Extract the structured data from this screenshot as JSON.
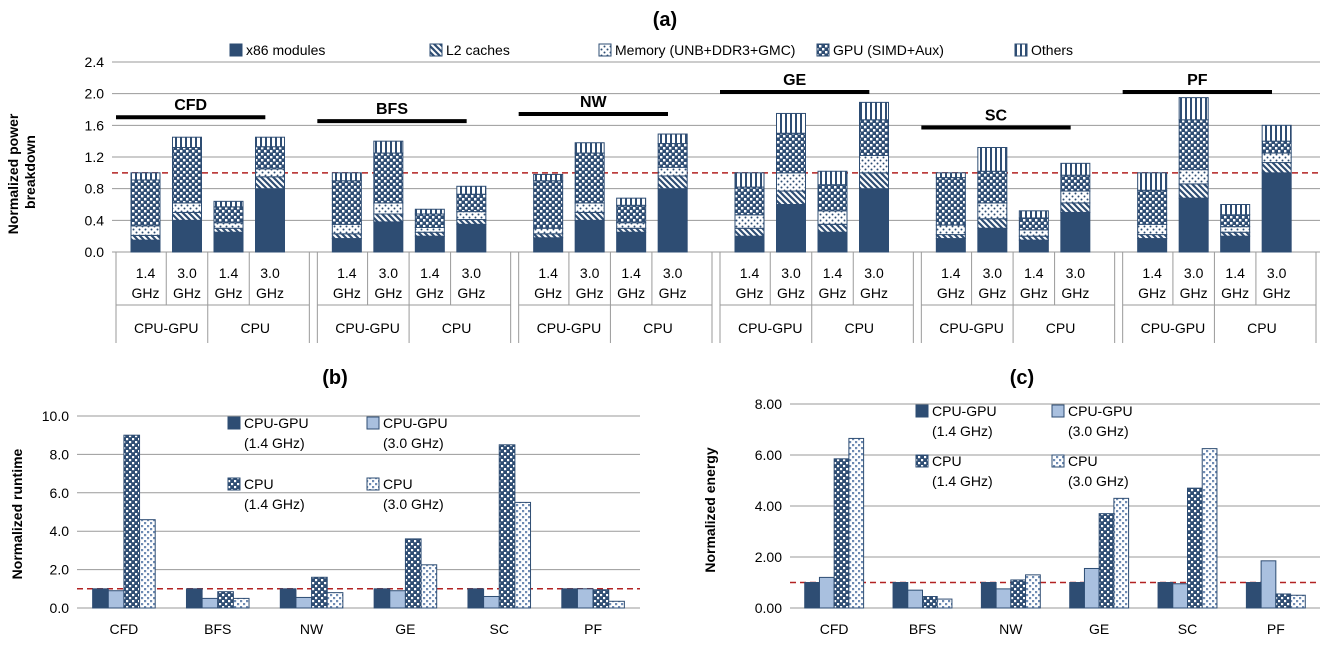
{
  "chart_data": [
    {
      "id": "a",
      "type": "stacked-bar",
      "title": "(a)",
      "ylabel": "Normalized power breakdown",
      "ylim": [
        0,
        2.4
      ],
      "yticks": [
        "0.0",
        "0.4",
        "0.8",
        "1.2",
        "1.6",
        "2.0",
        "2.4"
      ],
      "ytick_values": [
        0,
        0.4,
        0.8,
        1.2,
        1.6,
        2.0,
        2.4
      ],
      "reference_line": 1.0,
      "legend": [
        "x86 modules",
        "L2 caches",
        "Memory (UNB+DDR3+GMC)",
        "GPU (SIMD+Aux)",
        "Others"
      ],
      "freq_labels": [
        "1.4",
        "GHz",
        "3.0",
        "GHz"
      ],
      "mode_labels": [
        "CPU-GPU",
        "CPU"
      ],
      "benchmarks": [
        {
          "name": "CFD",
          "bars": [
            {
              "freq": "1.4 GHz",
              "mode": "CPU-GPU",
              "values": [
                0.15,
                0.06,
                0.12,
                0.58,
                0.09
              ]
            },
            {
              "freq": "3.0 GHz",
              "mode": "CPU-GPU",
              "values": [
                0.4,
                0.1,
                0.12,
                0.7,
                0.13
              ]
            },
            {
              "freq": "1.4 GHz",
              "mode": "CPU",
              "values": [
                0.25,
                0.05,
                0.07,
                0.2,
                0.07
              ]
            },
            {
              "freq": "3.0 GHz",
              "mode": "CPU",
              "values": [
                0.8,
                0.15,
                0.1,
                0.28,
                0.12
              ]
            }
          ]
        },
        {
          "name": "BFS",
          "bars": [
            {
              "freq": "1.4 GHz",
              "mode": "CPU-GPU",
              "values": [
                0.17,
                0.06,
                0.12,
                0.55,
                0.1
              ]
            },
            {
              "freq": "3.0 GHz",
              "mode": "CPU-GPU",
              "values": [
                0.38,
                0.1,
                0.14,
                0.63,
                0.15
              ]
            },
            {
              "freq": "1.4 GHz",
              "mode": "CPU",
              "values": [
                0.2,
                0.05,
                0.06,
                0.17,
                0.06
              ]
            },
            {
              "freq": "3.0 GHz",
              "mode": "CPU",
              "values": [
                0.35,
                0.06,
                0.1,
                0.22,
                0.1
              ]
            }
          ]
        },
        {
          "name": "NW",
          "bars": [
            {
              "freq": "1.4 GHz",
              "mode": "CPU-GPU",
              "values": [
                0.18,
                0.05,
                0.07,
                0.6,
                0.08
              ]
            },
            {
              "freq": "3.0 GHz",
              "mode": "CPU-GPU",
              "values": [
                0.4,
                0.1,
                0.12,
                0.63,
                0.13
              ]
            },
            {
              "freq": "1.4 GHz",
              "mode": "CPU",
              "values": [
                0.25,
                0.05,
                0.07,
                0.22,
                0.09
              ]
            },
            {
              "freq": "3.0 GHz",
              "mode": "CPU",
              "values": [
                0.8,
                0.16,
                0.11,
                0.3,
                0.12
              ]
            }
          ]
        },
        {
          "name": "GE",
          "bars": [
            {
              "freq": "1.4 GHz",
              "mode": "CPU-GPU",
              "values": [
                0.2,
                0.1,
                0.17,
                0.35,
                0.18
              ]
            },
            {
              "freq": "3.0 GHz",
              "mode": "CPU-GPU",
              "values": [
                0.6,
                0.17,
                0.23,
                0.5,
                0.25
              ]
            },
            {
              "freq": "1.4 GHz",
              "mode": "CPU",
              "values": [
                0.25,
                0.1,
                0.17,
                0.33,
                0.17
              ]
            },
            {
              "freq": "3.0 GHz",
              "mode": "CPU",
              "values": [
                0.8,
                0.2,
                0.22,
                0.45,
                0.22
              ]
            }
          ]
        },
        {
          "name": "SC",
          "bars": [
            {
              "freq": "1.4 GHz",
              "mode": "CPU-GPU",
              "values": [
                0.17,
                0.05,
                0.12,
                0.6,
                0.06
              ]
            },
            {
              "freq": "3.0 GHz",
              "mode": "CPU-GPU",
              "values": [
                0.3,
                0.12,
                0.2,
                0.4,
                0.3
              ]
            },
            {
              "freq": "1.4 GHz",
              "mode": "CPU",
              "values": [
                0.15,
                0.05,
                0.08,
                0.15,
                0.09
              ]
            },
            {
              "freq": "3.0 GHz",
              "mode": "CPU",
              "values": [
                0.5,
                0.12,
                0.15,
                0.2,
                0.15
              ]
            }
          ]
        },
        {
          "name": "PF",
          "bars": [
            {
              "freq": "1.4 GHz",
              "mode": "CPU-GPU",
              "values": [
                0.17,
                0.05,
                0.13,
                0.43,
                0.22
              ]
            },
            {
              "freq": "3.0 GHz",
              "mode": "CPU-GPU",
              "values": [
                0.68,
                0.18,
                0.18,
                0.63,
                0.28
              ]
            },
            {
              "freq": "1.4 GHz",
              "mode": "CPU",
              "values": [
                0.2,
                0.05,
                0.07,
                0.15,
                0.13
              ]
            },
            {
              "freq": "3.0 GHz",
              "mode": "CPU",
              "values": [
                1.0,
                0.13,
                0.12,
                0.15,
                0.2
              ]
            }
          ]
        }
      ]
    },
    {
      "id": "b",
      "type": "bar",
      "title": "(b)",
      "ylabel": "Normalized runtime",
      "ylim": [
        0,
        10
      ],
      "yticks": [
        "0.0",
        "2.0",
        "4.0",
        "6.0",
        "8.0",
        "10.0"
      ],
      "ytick_values": [
        0,
        2,
        4,
        6,
        8,
        10
      ],
      "reference_line": 1.0,
      "categories": [
        "CFD",
        "BFS",
        "NW",
        "GE",
        "SC",
        "PF"
      ],
      "series": [
        {
          "name": "CPU-GPU",
          "sub": "(1.4 GHz)",
          "values": [
            1.0,
            1.0,
            1.0,
            1.0,
            1.0,
            1.0
          ]
        },
        {
          "name": "CPU-GPU",
          "sub": "(3.0 GHz)",
          "values": [
            0.9,
            0.5,
            0.55,
            0.9,
            0.6,
            1.0
          ]
        },
        {
          "name": "CPU",
          "sub": "(1.4 GHz)",
          "values": [
            9.0,
            0.85,
            1.6,
            3.6,
            8.5,
            0.95
          ]
        },
        {
          "name": "CPU",
          "sub": "(3.0 GHz)",
          "values": [
            4.6,
            0.5,
            0.8,
            2.25,
            5.5,
            0.35
          ]
        }
      ]
    },
    {
      "id": "c",
      "type": "bar",
      "title": "(c)",
      "ylabel": "Normalized energy",
      "ylim": [
        0,
        8
      ],
      "yticks": [
        "0.00",
        "2.00",
        "4.00",
        "6.00",
        "8.00"
      ],
      "ytick_values": [
        0,
        2,
        4,
        6,
        8
      ],
      "reference_line": 1.0,
      "categories": [
        "CFD",
        "BFS",
        "NW",
        "GE",
        "SC",
        "PF"
      ],
      "series": [
        {
          "name": "CPU-GPU",
          "sub": "(1.4 GHz)",
          "values": [
            1.0,
            1.0,
            1.0,
            1.0,
            1.0,
            1.0
          ]
        },
        {
          "name": "CPU-GPU",
          "sub": "(3.0 GHz)",
          "values": [
            1.2,
            0.7,
            0.75,
            1.55,
            0.95,
            1.85
          ]
        },
        {
          "name": "CPU",
          "sub": "(1.4 GHz)",
          "values": [
            5.85,
            0.45,
            1.1,
            3.7,
            4.7,
            0.55
          ]
        },
        {
          "name": "CPU",
          "sub": "(3.0 GHz)",
          "values": [
            6.65,
            0.35,
            1.3,
            4.3,
            6.25,
            0.5
          ]
        }
      ]
    }
  ]
}
